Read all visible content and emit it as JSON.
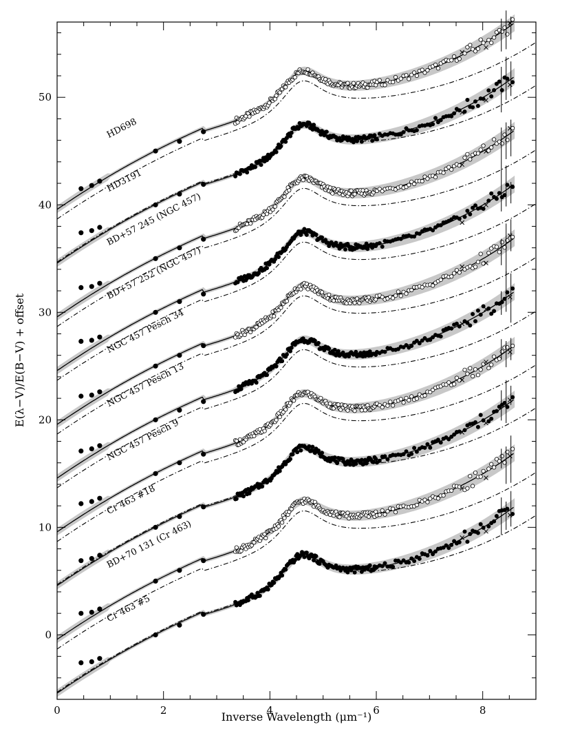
{
  "chart_data": {
    "type": "line",
    "xlabel": "Inverse Wavelength (μm⁻¹)",
    "ylabel": "E(λ−V)/E(B−V) + offset",
    "xlim": [
      0,
      9
    ],
    "ylim": [
      -6,
      57
    ],
    "x_ticks": [
      0,
      2,
      4,
      6,
      8
    ],
    "y_ticks": [
      0,
      10,
      20,
      30,
      40,
      50
    ],
    "grid": false,
    "legend": "none",
    "series_style": {
      "model_line": "solid black",
      "reference_line": "dash-dot black",
      "uncertainty_band": "#c8c8c8",
      "filled_points": "#000000",
      "open_points": "#ffffff"
    },
    "series": [
      {
        "name": "HD698",
        "offset": 45,
        "marker": "open",
        "reference_offset": 0,
        "x_start": 3.35,
        "uv_peak": 52.9,
        "uv_trough": 51.1,
        "end_value": 54.3,
        "ir_points": [
          [
            0.45,
            41.5
          ],
          [
            0.65,
            41.8
          ],
          [
            0.8,
            42.2
          ],
          [
            1.85,
            45.0
          ],
          [
            2.3,
            45.9
          ],
          [
            2.75,
            46.8
          ]
        ]
      },
      {
        "name": "HD3191",
        "offset": 40,
        "marker": "filled",
        "reference_offset": 1.0,
        "x_start": 3.35,
        "uv_peak": 47.4,
        "uv_trough": 45.5,
        "end_value": 50.1,
        "ir_points": [
          [
            0.45,
            37.4
          ],
          [
            0.65,
            37.6
          ],
          [
            0.8,
            37.9
          ],
          [
            1.85,
            40.0
          ],
          [
            2.3,
            41.0
          ],
          [
            2.75,
            41.9
          ]
        ]
      },
      {
        "name": "BD+57 245 (NGC 457)",
        "offset": 35,
        "marker": "open",
        "reference_offset": 0,
        "x_start": 3.35,
        "uv_peak": 42.6,
        "uv_trough": 40.2,
        "end_value": 43.8,
        "ir_points": [
          [
            0.45,
            32.3
          ],
          [
            0.65,
            32.4
          ],
          [
            0.8,
            32.7
          ],
          [
            1.85,
            35.0
          ],
          [
            2.3,
            36.0
          ],
          [
            2.75,
            36.8
          ]
        ]
      },
      {
        "name": "BD+57 252 (NGC 457)",
        "offset": 30,
        "marker": "filled",
        "reference_offset": 0,
        "x_start": 3.35,
        "uv_peak": 37.9,
        "uv_trough": 35.4,
        "end_value": 39.3,
        "ir_points": [
          [
            0.45,
            27.3
          ],
          [
            0.65,
            27.4
          ],
          [
            0.8,
            27.7
          ],
          [
            1.85,
            30.0
          ],
          [
            2.3,
            31.0
          ],
          [
            2.75,
            31.7
          ]
        ]
      },
      {
        "name": "NGC 457 Pesch 34",
        "offset": 25,
        "marker": "open",
        "reference_offset": 0,
        "x_start": 3.35,
        "uv_peak": 32.3,
        "uv_trough": 30.0,
        "end_value": 33.7,
        "ir_points": [
          [
            0.45,
            22.2
          ],
          [
            0.65,
            22.3
          ],
          [
            0.8,
            22.6
          ],
          [
            1.85,
            25.0
          ],
          [
            2.3,
            26.0
          ],
          [
            2.75,
            26.9
          ]
        ]
      },
      {
        "name": "NGC 457 Pesch 13",
        "offset": 20,
        "marker": "filled",
        "reference_offset": 0,
        "x_start": 3.35,
        "uv_peak": 27.2,
        "uv_trough": 24.7,
        "end_value": 28.8,
        "ir_points": [
          [
            0.45,
            17.1
          ],
          [
            0.65,
            17.3
          ],
          [
            0.8,
            17.6
          ],
          [
            1.85,
            20.0
          ],
          [
            2.3,
            20.9
          ],
          [
            2.75,
            21.7
          ]
        ]
      },
      {
        "name": "NGC 457 Pesch 9",
        "offset": 15,
        "marker": "open",
        "reference_offset": 0,
        "x_start": 3.35,
        "uv_peak": 22.8,
        "uv_trough": 20.9,
        "end_value": 25.1,
        "ir_points": [
          [
            0.45,
            12.2
          ],
          [
            0.65,
            12.4
          ],
          [
            0.8,
            12.7
          ],
          [
            1.85,
            15.0
          ],
          [
            2.3,
            16.0
          ],
          [
            2.75,
            16.8
          ]
        ]
      },
      {
        "name": "Cr 463 #18",
        "offset": 10,
        "marker": "filled",
        "reference_offset": 1.0,
        "x_start": 3.35,
        "uv_peak": 18.2,
        "uv_trough": 16.5,
        "end_value": 21.8,
        "ir_points": [
          [
            0.45,
            6.9
          ],
          [
            0.65,
            7.1
          ],
          [
            0.8,
            7.4
          ],
          [
            1.85,
            10.0
          ],
          [
            2.3,
            11.0
          ],
          [
            2.75,
            11.9
          ]
        ]
      },
      {
        "name": "BD+70 131 (Cr 463)",
        "offset": 5,
        "marker": "open",
        "reference_offset": 0,
        "x_start": 3.35,
        "uv_peak": 13.4,
        "uv_trough": 11.2,
        "end_value": 16.2,
        "ir_points": [
          [
            0.45,
            2.0
          ],
          [
            0.65,
            2.1
          ],
          [
            0.8,
            2.4
          ],
          [
            1.85,
            5.0
          ],
          [
            2.3,
            6.0
          ],
          [
            2.75,
            6.9
          ]
        ]
      },
      {
        "name": "Cr 463 #5",
        "offset": 0,
        "marker": "filled",
        "reference_offset": 1.0,
        "x_start": 3.35,
        "uv_peak": 8.2,
        "uv_trough": 5.9,
        "end_value": 10.6,
        "ir_points": [
          [
            0.45,
            -2.6
          ],
          [
            0.65,
            -2.5
          ],
          [
            0.8,
            -2.2
          ],
          [
            1.85,
            0.0
          ],
          [
            2.3,
            0.9
          ],
          [
            2.75,
            1.9
          ]
        ]
      }
    ]
  }
}
